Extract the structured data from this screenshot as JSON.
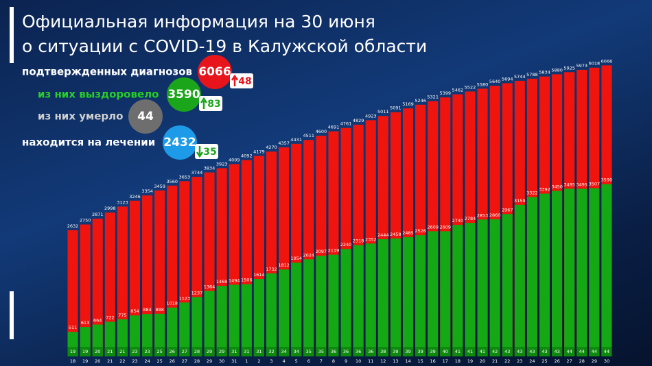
{
  "header": {
    "title_line1": "Официальная информация на 30 июня",
    "title_line2": "о ситуации с COVID-19 в Калужской области"
  },
  "summary": [
    {
      "label": "подтвержденных диагнозов",
      "value": 6066,
      "change": 48,
      "color": "#e8141c",
      "label_color": "#ffffff"
    },
    {
      "label": "из них выздоровело",
      "value": 3590,
      "change": 83,
      "color": "#1aa51a",
      "label_color": "#27d027"
    },
    {
      "label": "из них умерло",
      "value": 44,
      "color": "#6e6e6e",
      "label_color": "#d0d0d0"
    },
    {
      "label": "находится на лечении",
      "value": 2432,
      "change": 35,
      "color": "#1e9be8",
      "label_color": "#ffffff"
    }
  ],
  "chart_data": {
    "type": "bar",
    "categories": [
      "18",
      "19",
      "20",
      "21",
      "22",
      "23",
      "24",
      "25",
      "26",
      "27",
      "28",
      "29",
      "30",
      "31",
      "1",
      "2",
      "3",
      "4",
      "5",
      "6",
      "7",
      "8",
      "9",
      "10",
      "11",
      "12",
      "13",
      "14",
      "15",
      "16",
      "17",
      "18",
      "19",
      "20",
      "21",
      "22",
      "23",
      "24",
      "25",
      "26",
      "27",
      "28",
      "29",
      "30"
    ],
    "series": [
      {
        "color": "#f0140f",
        "values": [
          2632,
          2750,
          2871,
          2998,
          3123,
          3246,
          3354,
          3459,
          3560,
          3653,
          3744,
          3834,
          3923,
          4009,
          4092,
          4179,
          4270,
          4357,
          4431,
          4511,
          4600,
          4691,
          4761,
          4829,
          4923,
          5011,
          5091,
          5169,
          5246,
          5321,
          5399,
          5462,
          5522,
          5580,
          5640,
          5694,
          5744,
          5788,
          5834,
          5880,
          5925,
          5973,
          6018,
          6066
        ]
      },
      {
        "color": "#14a814",
        "values": [
          511,
          613,
          664,
          722,
          775,
          854,
          884,
          888,
          1018,
          1123,
          1237,
          1364,
          1469,
          1494,
          1506,
          1614,
          1732,
          1812,
          1954,
          2024,
          2097,
          2119,
          2240,
          2318,
          2352,
          2444,
          2458,
          2485,
          2526,
          2609,
          2609,
          2740,
          2784,
          2853,
          2860,
          2967,
          3159,
          3322,
          3392,
          3450,
          3495,
          3495,
          3507,
          3590
        ]
      }
    ],
    "deaths": {
      "color": "#0d8a0d",
      "values": [
        19,
        19,
        20,
        21,
        21,
        23,
        23,
        25,
        26,
        27,
        28,
        29,
        29,
        31,
        31,
        31,
        32,
        34,
        34,
        35,
        35,
        36,
        36,
        36,
        36,
        38,
        39,
        39,
        39,
        39,
        40,
        41,
        41,
        41,
        42,
        43,
        43,
        43,
        43,
        43,
        44,
        44,
        44,
        44
      ]
    },
    "ylim": [
      0,
      6500
    ]
  }
}
